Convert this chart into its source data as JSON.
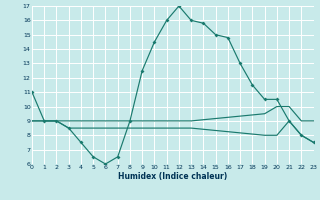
{
  "xlabel": "Humidex (Indice chaleur)",
  "bg_color": "#c8eaea",
  "grid_color": "#ffffff",
  "line_color": "#1a7a6e",
  "x_min": 0,
  "x_max": 23,
  "y_min": 6,
  "y_max": 17,
  "line1_x": [
    0,
    1,
    2,
    3,
    4,
    5,
    6,
    7,
    8,
    9,
    10,
    11,
    12,
    13,
    14,
    15,
    16,
    17,
    18,
    19,
    20,
    21,
    22,
    23
  ],
  "line1_y": [
    11,
    9,
    9,
    8.5,
    7.5,
    6.5,
    6,
    6.5,
    9,
    12.5,
    14.5,
    16,
    17,
    16,
    15.8,
    15,
    14.8,
    13,
    11.5,
    10.5,
    10.5,
    9,
    8,
    7.5
  ],
  "line2_x": [
    0,
    1,
    2,
    3,
    9,
    10,
    11,
    12,
    13,
    19,
    20,
    21,
    22,
    23
  ],
  "line2_y": [
    9,
    9,
    9,
    9,
    9,
    9,
    9,
    9,
    9,
    9.5,
    10,
    10,
    9,
    9
  ],
  "line3_x": [
    0,
    1,
    2,
    3,
    9,
    10,
    11,
    12,
    13,
    19,
    20,
    21,
    22,
    23
  ],
  "line3_y": [
    9,
    9,
    9,
    8.5,
    8.5,
    8.5,
    8.5,
    8.5,
    8.5,
    8,
    8,
    9,
    8,
    7.5
  ]
}
